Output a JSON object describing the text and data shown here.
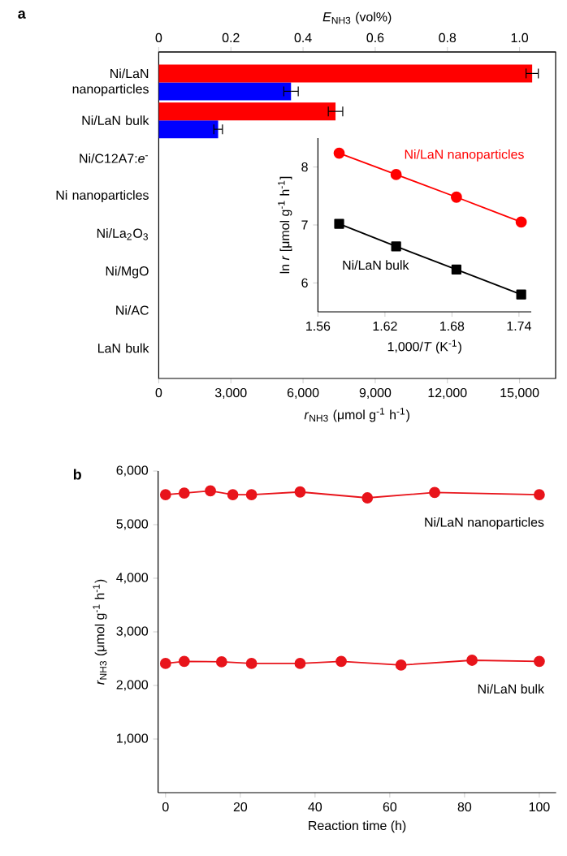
{
  "chart_data": [
    {
      "type": "bar",
      "title": "a",
      "orientation": "horizontal",
      "categories": [
        "Ni/LaN nanoparticles",
        "Ni/LaN bulk",
        "Ni/C12A7:*e*$^{-}$",
        "Ni nanoparticles",
        "Ni/La$_{2}$O$_{3}$",
        "Ni/MgO",
        "Ni/AC",
        "LaN bulk"
      ],
      "series": [
        {
          "color": "#ff0000",
          "axis": "x2",
          "values": [
            1.035,
            0.49,
            null,
            null,
            null,
            null,
            null,
            null
          ],
          "errors": [
            0.017,
            0.02,
            null,
            null,
            null,
            null,
            null,
            null
          ]
        },
        {
          "color": "#0000ff",
          "values": [
            5500,
            2470,
            null,
            null,
            null,
            null,
            null,
            null
          ],
          "errors": [
            300,
            180,
            null,
            null,
            null,
            null,
            null,
            null
          ]
        }
      ],
      "xlabel": "*r*$_{NH3}$ (μmol g$^{-1}$ h$^{-1}$)",
      "x2label": "*E*$_{NH3}$ (vol%)",
      "xlim": [
        0,
        16500
      ],
      "xticks": [
        0,
        {
          "value": 3000,
          "label": "3,000"
        },
        {
          "value": 6000,
          "label": "6,000"
        },
        {
          "value": 9000,
          "label": "9,000"
        },
        {
          "value": 12000,
          "label": "12,000"
        },
        {
          "value": 15000,
          "label": "15,000"
        }
      ],
      "x2lim": [
        0,
        1.1
      ],
      "x2ticks": [
        0,
        0.2,
        0.4,
        0.6,
        0.8,
        {
          "value": 1.0,
          "label": "1.0"
        }
      ]
    },
    {
      "type": "line",
      "xlabel": "1,000/*T* (K$^{-1}$)",
      "ylabel": "ln *r* [μmol g$^{-1}$ h$^{-1}$]",
      "x": [
        1.579,
        1.63,
        1.684,
        1.742
      ],
      "series": [
        {
          "name": "Ni/LaN nanoparticles",
          "color": "#ff0000",
          "marker": "circle",
          "values": [
            8.24,
            7.87,
            7.48,
            7.05
          ]
        },
        {
          "name": "Ni/LaN bulk",
          "color": "#000000",
          "marker": "square",
          "values": [
            7.02,
            6.63,
            6.23,
            5.8
          ]
        }
      ],
      "xlim": [
        1.56,
        1.751
      ],
      "xticks": [
        1.56,
        1.62,
        1.68,
        1.74
      ],
      "ylim": [
        5.5,
        8.5
      ],
      "yticks": [
        6,
        7,
        8
      ]
    },
    {
      "type": "line",
      "title": "b",
      "xlabel": "Reaction time (h)",
      "ylabel": "*r*$_{NH3}$ (μmol g$^{-1}$ h$^{-1}$)",
      "marker": "circle",
      "series": [
        {
          "name": "Ni/LaN nanoparticles",
          "color": "#e8141b",
          "x": [
            0,
            5,
            12,
            18,
            23,
            36,
            54,
            72,
            100
          ],
          "values": [
            5560,
            5590,
            5630,
            5560,
            5560,
            5610,
            5500,
            5600,
            5560
          ]
        },
        {
          "name": "Ni/LaN bulk",
          "color": "#e8141b",
          "x": [
            0,
            5,
            15,
            23,
            36,
            47,
            63,
            82,
            100
          ],
          "values": [
            2410,
            2450,
            2440,
            2410,
            2410,
            2450,
            2380,
            2470,
            2450
          ]
        }
      ],
      "xlim": [
        -2,
        104.5
      ],
      "xticks": [
        0,
        20,
        40,
        60,
        80,
        100
      ],
      "ylim": [
        0,
        6000
      ],
      "yticks": [
        {
          "value": 1000,
          "label": "1,000"
        },
        {
          "value": 2000,
          "label": "2,000"
        },
        {
          "value": 3000,
          "label": "3,000"
        },
        {
          "value": 4000,
          "label": "4,000"
        },
        {
          "value": 5000,
          "label": "5,000"
        },
        {
          "value": 6000,
          "label": "6,000"
        }
      ]
    }
  ]
}
